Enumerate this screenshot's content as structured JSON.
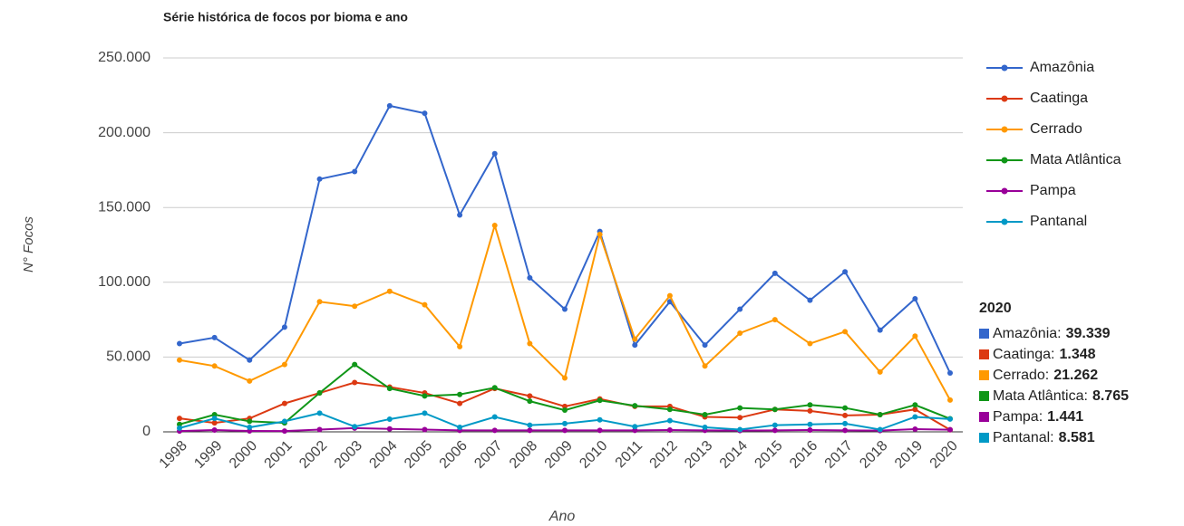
{
  "chart_data": {
    "type": "line",
    "title": "Série histórica de focos por bioma e ano",
    "x_label": "Ano",
    "y_label": "N° Focos",
    "categories": [
      "1998",
      "1999",
      "2000",
      "2001",
      "2002",
      "2003",
      "2004",
      "2005",
      "2006",
      "2007",
      "2008",
      "2009",
      "2010",
      "2011",
      "2012",
      "2013",
      "2014",
      "2015",
      "2016",
      "2017",
      "2018",
      "2019",
      "2020"
    ],
    "ylim": [
      0,
      250000
    ],
    "yticks": [
      0,
      {
        "value": 50000,
        "label": "50.000"
      },
      {
        "value": 100000,
        "label": "100.000"
      },
      {
        "value": 150000,
        "label": "150.000"
      },
      {
        "value": 200000,
        "label": "200.000"
      },
      {
        "value": 250000,
        "label": "250.000"
      }
    ],
    "grid": true,
    "legend": "right",
    "series": [
      {
        "name": "Amazônia",
        "color": "#3366cc",
        "values": [
          59000,
          63000,
          48000,
          70000,
          169000,
          174000,
          218000,
          213000,
          145000,
          186000,
          103000,
          82000,
          134000,
          58000,
          87000,
          58000,
          82000,
          106000,
          88000,
          107000,
          68000,
          89000,
          39339
        ]
      },
      {
        "name": "Caatinga",
        "color": "#dc3912",
        "values": [
          9000,
          6000,
          9000,
          19000,
          26000,
          33000,
          30000,
          26000,
          19000,
          29000,
          24000,
          17000,
          22000,
          17000,
          17000,
          10000,
          9500,
          15000,
          14000,
          11000,
          11500,
          15000,
          1348
        ]
      },
      {
        "name": "Cerrado",
        "color": "#ff9900",
        "values": [
          48000,
          44000,
          34000,
          45000,
          87000,
          84000,
          94000,
          85000,
          57000,
          138000,
          59000,
          36000,
          132000,
          62000,
          91000,
          44000,
          66000,
          75000,
          59000,
          67000,
          40000,
          64000,
          21262
        ]
      },
      {
        "name": "Mata Atlântica",
        "color": "#109618",
        "values": [
          5000,
          11500,
          7000,
          6000,
          26000,
          45000,
          29000,
          24000,
          25000,
          29500,
          20500,
          14500,
          21000,
          17500,
          15000,
          11500,
          16000,
          15000,
          18000,
          16000,
          11500,
          18000,
          8765
        ]
      },
      {
        "name": "Pampa",
        "color": "#990099",
        "values": [
          500,
          1200,
          600,
          500,
          1500,
          2500,
          2000,
          1500,
          1000,
          1000,
          1000,
          1000,
          1000,
          1000,
          1200,
          1000,
          800,
          1000,
          1200,
          1000,
          800,
          1800,
          1441
        ]
      },
      {
        "name": "Pantanal",
        "color": "#0099c6",
        "values": [
          2500,
          9000,
          3000,
          7000,
          12500,
          3500,
          8500,
          12500,
          3000,
          10000,
          4500,
          5500,
          8000,
          3500,
          7500,
          3000,
          1500,
          4500,
          5000,
          5500,
          1500,
          10000,
          8581
        ]
      }
    ],
    "tooltip": {
      "title": "2020",
      "items": [
        {
          "label": "Amazônia:",
          "value_label": "39.339"
        },
        {
          "label": "Caatinga:",
          "value_label": "1.348"
        },
        {
          "label": "Cerrado:",
          "value_label": "21.262"
        },
        {
          "label": "Mata Atlântica:",
          "value_label": "8.765"
        },
        {
          "label": "Pampa:",
          "value_label": "1.441"
        },
        {
          "label": "Pantanal:",
          "value_label": "8.581"
        }
      ]
    }
  }
}
